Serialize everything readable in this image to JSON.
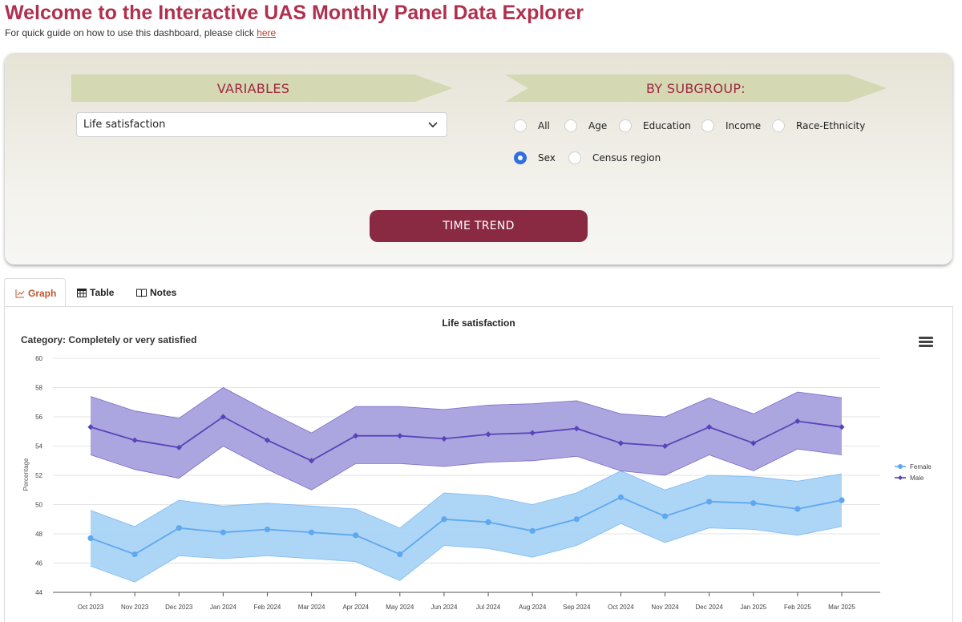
{
  "header": {
    "title": "Welcome to the Interactive UAS Monthly Panel Data Explorer",
    "subtitle_prefix": "For quick guide on how to use this dashboard, please click",
    "subtitle_link": "here"
  },
  "controls": {
    "variables_label": "VARIABLES",
    "subgroup_label": "BY SUBGROUP:",
    "selected_variable": "Life satisfaction",
    "subgroups": [
      {
        "label": "All",
        "checked": false
      },
      {
        "label": "Age",
        "checked": false
      },
      {
        "label": "Education",
        "checked": false
      },
      {
        "label": "Income",
        "checked": false
      },
      {
        "label": "Race-Ethnicity",
        "checked": false
      },
      {
        "label": "Sex",
        "checked": true
      },
      {
        "label": "Census region",
        "checked": false
      }
    ],
    "button_label": "TIME TREND"
  },
  "tabs": [
    {
      "label": "Graph",
      "icon": "line-chart-icon",
      "active": true
    },
    {
      "label": "Table",
      "icon": "table-icon",
      "active": false
    },
    {
      "label": "Notes",
      "icon": "book-icon",
      "active": false
    }
  ],
  "colors": {
    "female": "#5ea8ef",
    "female_band": "#a9d3f6",
    "male": "#5844b8",
    "male_band": "#a7a1dd",
    "accent": "#b0304f",
    "button": "#8a2a42"
  },
  "chart_data": {
    "type": "line",
    "title": "Life satisfaction",
    "category": "Category: Completely or very satisfied",
    "ylabel": "Percentage",
    "xlabel": "",
    "ylim": [
      44,
      60
    ],
    "yticks": [
      44,
      46,
      48,
      50,
      52,
      54,
      56,
      58,
      60
    ],
    "grid": true,
    "legend_position": "right",
    "categories": [
      "Oct 2023",
      "Nov 2023",
      "Dec 2023",
      "Jan 2024",
      "Feb 2024",
      "Mar 2024",
      "Apr 2024",
      "May 2024",
      "Jun 2024",
      "Jul 2024",
      "Aug 2024",
      "Sep 2024",
      "Oct 2024",
      "Nov 2024",
      "Dec 2024",
      "Jan 2025",
      "Feb 2025",
      "Mar 2025"
    ],
    "series": [
      {
        "name": "Female",
        "values": [
          47.7,
          46.6,
          48.4,
          48.1,
          48.3,
          48.1,
          47.9,
          46.6,
          49.0,
          48.8,
          48.2,
          49.0,
          50.5,
          49.2,
          50.2,
          50.1,
          49.7,
          50.3
        ],
        "lower": [
          45.8,
          44.7,
          46.5,
          46.3,
          46.5,
          46.3,
          46.1,
          44.8,
          47.2,
          47.0,
          46.4,
          47.2,
          48.7,
          47.4,
          48.4,
          48.3,
          47.9,
          48.5
        ],
        "upper": [
          49.6,
          48.5,
          50.3,
          49.9,
          50.1,
          49.9,
          49.7,
          48.4,
          50.8,
          50.6,
          50.0,
          50.8,
          52.3,
          51.0,
          52.0,
          51.9,
          51.6,
          52.1
        ]
      },
      {
        "name": "Male",
        "values": [
          55.3,
          54.4,
          53.9,
          56.0,
          54.4,
          53.0,
          54.7,
          54.7,
          54.5,
          54.8,
          54.9,
          55.2,
          54.2,
          54.0,
          55.3,
          54.2,
          55.7,
          55.3
        ],
        "lower": [
          53.4,
          52.4,
          51.8,
          54.0,
          52.4,
          51.0,
          52.8,
          52.8,
          52.6,
          52.9,
          53.0,
          53.3,
          52.3,
          52.0,
          53.4,
          52.3,
          53.8,
          53.4
        ],
        "upper": [
          57.4,
          56.4,
          55.9,
          58.0,
          56.4,
          54.9,
          56.7,
          56.7,
          56.5,
          56.8,
          56.9,
          57.1,
          56.2,
          56.0,
          57.3,
          56.2,
          57.7,
          57.3
        ]
      }
    ]
  }
}
